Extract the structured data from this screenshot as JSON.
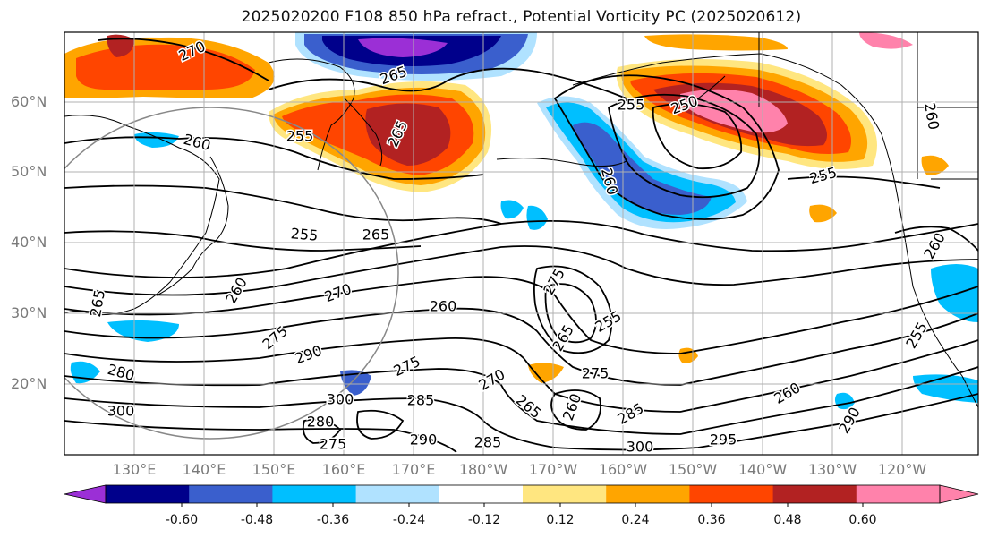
{
  "title": "2025020200 F108 850 hPa refract., Potential Vorticity PC (2025020612)",
  "lat_labels": [
    "60°N",
    "50°N",
    "40°N",
    "30°N",
    "20°N"
  ],
  "lon_labels": [
    "130°E",
    "140°E",
    "150°E",
    "160°E",
    "170°E",
    "180°W",
    "170°W",
    "160°W",
    "150°W",
    "140°W",
    "130°W",
    "120°W"
  ],
  "contour_labels": [
    "270",
    "265",
    "260",
    "255",
    "250",
    "255",
    "255",
    "265",
    "260",
    "260",
    "255",
    "265",
    "260",
    "260",
    "255",
    "270",
    "275",
    "260",
    "265",
    "290",
    "280",
    "300",
    "300",
    "275",
    "285",
    "270",
    "265",
    "260",
    "275",
    "285",
    "290",
    "285",
    "295",
    "260",
    "300",
    "280",
    "275",
    "255",
    "265",
    "275",
    "290"
  ],
  "colorbar": {
    "ticks": [
      "-0.60",
      "-0.48",
      "-0.36",
      "-0.24",
      "-0.12",
      "0.12",
      "0.24",
      "0.36",
      "0.48",
      "0.60"
    ],
    "colors": [
      "#9b2fd6",
      "#00008b",
      "#3a5fcd",
      "#00bfff",
      "#b0e2ff",
      "#ffffff",
      "#ffe680",
      "#ffa500",
      "#ff4500",
      "#b22222",
      "#ff82ab",
      "#ff82ab"
    ]
  },
  "legend_extend": "both"
}
